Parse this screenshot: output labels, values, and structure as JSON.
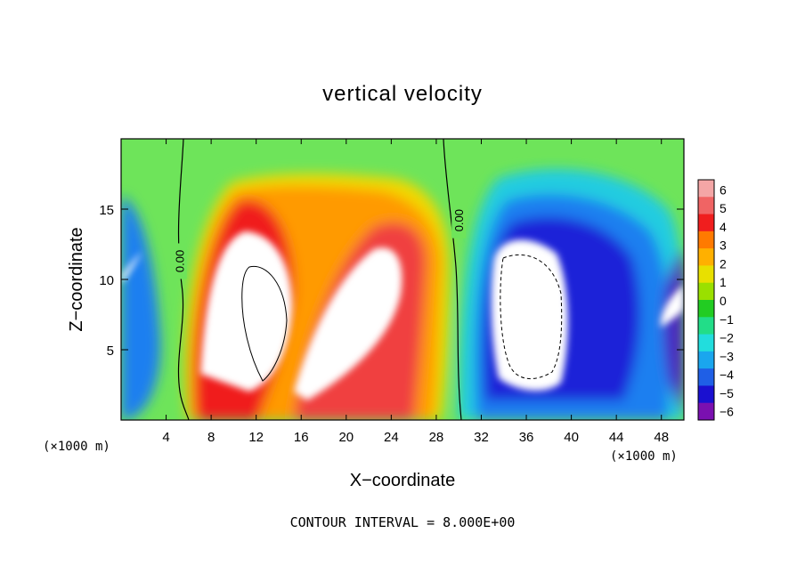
{
  "chart_data": {
    "type": "heatmap",
    "title": "vertical velocity",
    "xlabel": "X−coordinate",
    "ylabel": "Z−coordinate",
    "x_unit_label": "(×1000 m)",
    "y_unit_label": "(×1000 m)",
    "footer": "CONTOUR INTERVAL = 8.000E+00",
    "xlim": [
      0,
      50
    ],
    "ylim": [
      0,
      20
    ],
    "x_ticks": [
      4,
      8,
      12,
      16,
      20,
      24,
      28,
      32,
      36,
      40,
      44,
      48
    ],
    "y_ticks": [
      5,
      10,
      15
    ],
    "colorbar": {
      "levels": [
        6,
        5,
        4,
        3,
        2,
        1,
        0,
        -1,
        -2,
        -3,
        -4,
        -5,
        -6
      ],
      "labels": [
        "6",
        "5",
        "4",
        "3",
        "2",
        "1",
        "0",
        "−1",
        "−2",
        "−3",
        "−4",
        "−5",
        "−6"
      ],
      "colors": [
        "#f4a6a6",
        "#f06464",
        "#f01e1e",
        "#ff7a00",
        "#ffb000",
        "#e8e000",
        "#9ae000",
        "#22cc22",
        "#22dd88",
        "#22dddd",
        "#1aa6ee",
        "#1f5fe6",
        "#1a10d0",
        "#7a10b0"
      ]
    },
    "contour_labels": [
      {
        "text": "0.00",
        "x": 5.2,
        "z": 11.3
      },
      {
        "text": "0.00",
        "x": 30.0,
        "z": 14.2
      }
    ]
  }
}
